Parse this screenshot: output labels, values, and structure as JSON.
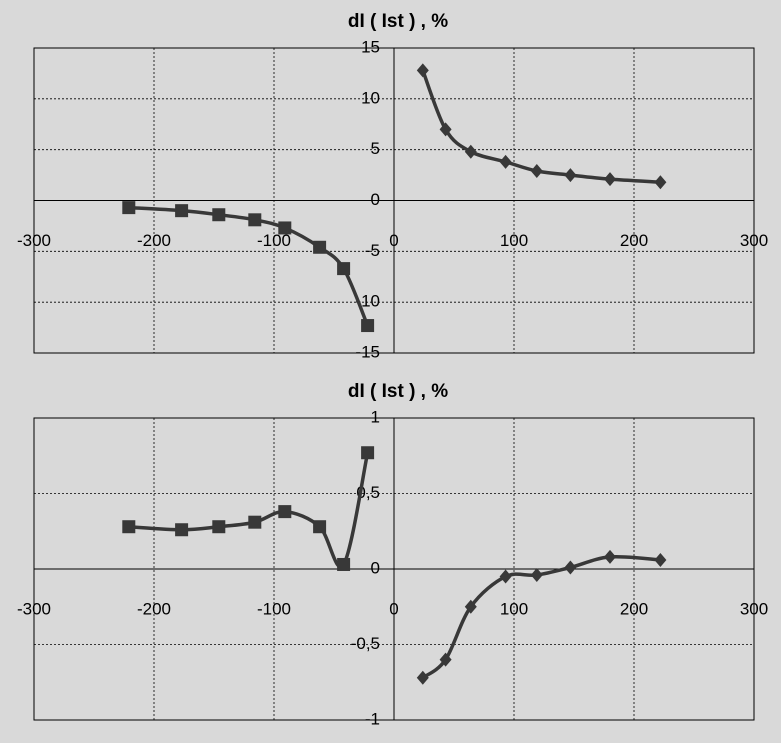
{
  "chart_data": [
    {
      "type": "line",
      "title": "dI ( Ist ) , %",
      "xlim": [
        -300,
        300
      ],
      "xticks": [
        -300,
        -200,
        -100,
        0,
        100,
        200,
        300
      ],
      "ylim": [
        -15,
        15
      ],
      "yticks": [
        15,
        10,
        5,
        0,
        -5,
        -10,
        -15
      ],
      "grid": true,
      "series": [
        {
          "color": "#383838",
          "marker": "square",
          "x": [
            -221,
            -177,
            -146,
            -116,
            -91,
            -62,
            -42,
            -22
          ],
          "values": [
            -0.7,
            -1.0,
            -1.4,
            -1.9,
            -2.7,
            -4.6,
            -6.7,
            -12.3
          ]
        },
        {
          "color": "#383838",
          "marker": "diamond",
          "x": [
            24,
            43,
            64,
            93,
            119,
            147,
            180,
            222
          ],
          "values": [
            12.8,
            7.0,
            4.8,
            3.8,
            2.9,
            2.5,
            2.1,
            1.8
          ]
        }
      ]
    },
    {
      "type": "line",
      "title": "dI ( Ist ) , %",
      "xlim": [
        -300,
        300
      ],
      "xticks": [
        -300,
        -200,
        -100,
        0,
        100,
        200,
        300
      ],
      "ylim": [
        -1,
        1
      ],
      "yticks": [
        1,
        {
          "value": 0.5,
          "label": "0,5"
        },
        0,
        {
          "value": -0.5,
          "label": "-0,5"
        },
        -1
      ],
      "grid": true,
      "series": [
        {
          "color": "#383838",
          "marker": "square",
          "x": [
            -221,
            -177,
            -146,
            -116,
            -91,
            -62,
            -42,
            -22
          ],
          "values": [
            0.28,
            0.26,
            0.28,
            0.31,
            0.38,
            0.28,
            0.03,
            0.77
          ]
        },
        {
          "color": "#383838",
          "marker": "diamond",
          "x": [
            24,
            43,
            64,
            93,
            119,
            147,
            180,
            222
          ],
          "values": [
            -0.72,
            -0.6,
            -0.25,
            -0.05,
            -0.04,
            0.01,
            0.08,
            0.06
          ]
        }
      ]
    }
  ]
}
